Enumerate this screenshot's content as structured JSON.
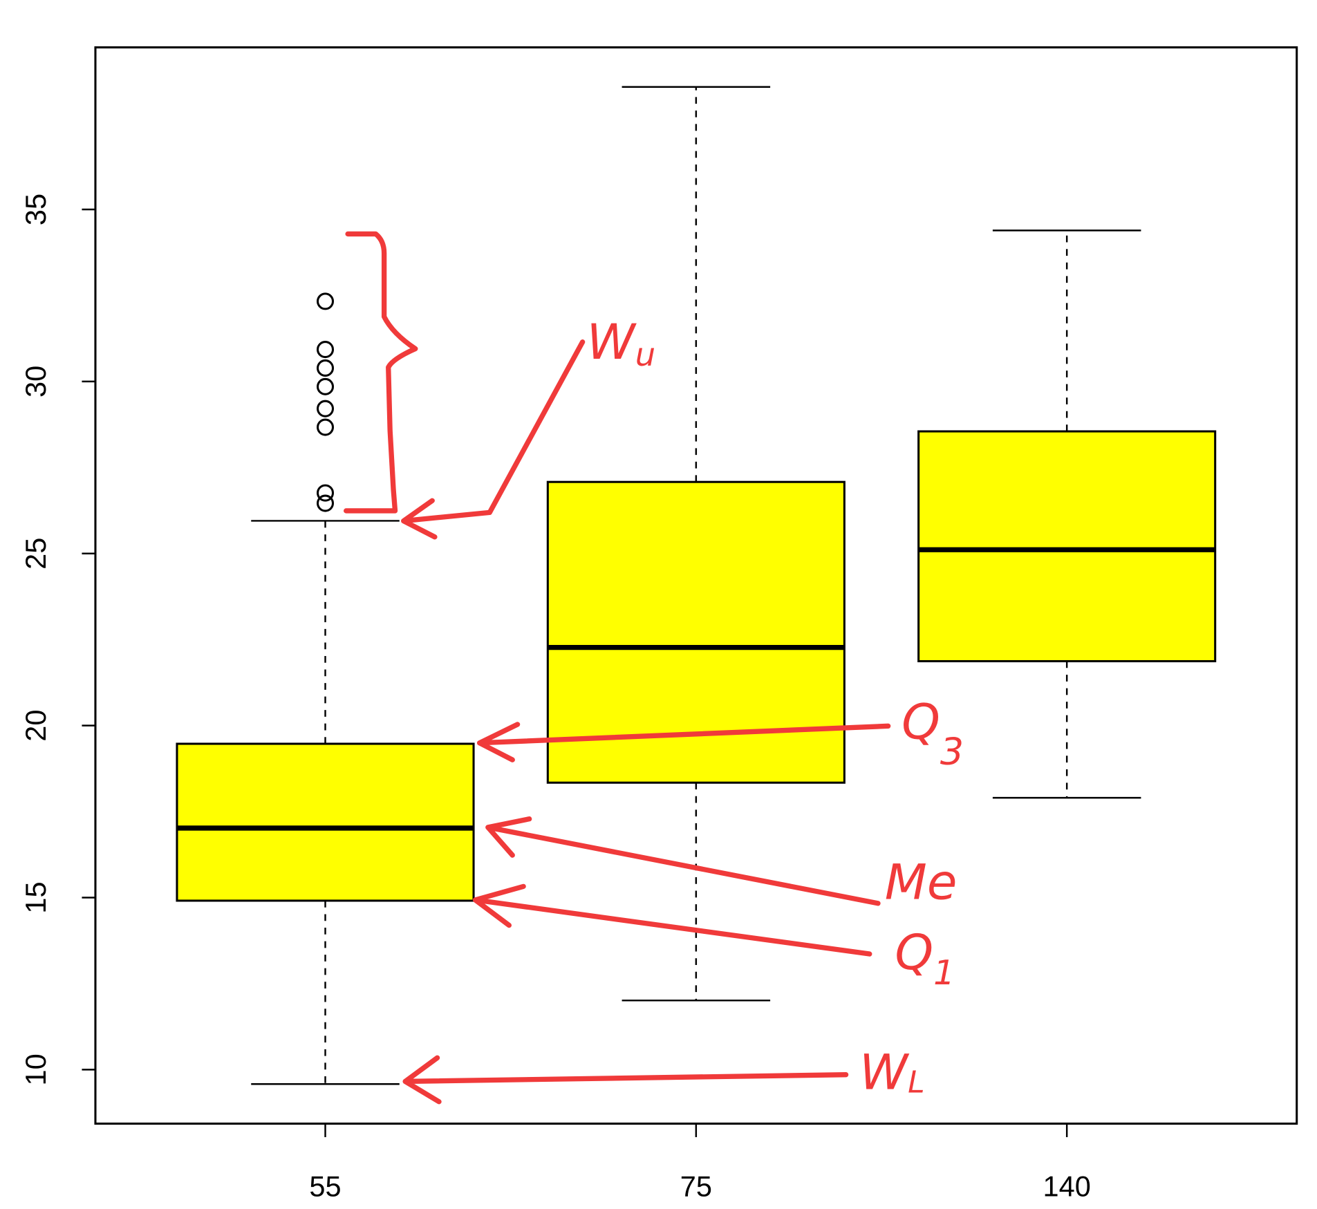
{
  "chart_data": {
    "type": "boxplot",
    "categories": [
      "55",
      "75",
      "140"
    ],
    "whisker_low": [
      9.58,
      12.01,
      17.9
    ],
    "q1": [
      14.91,
      18.34,
      21.87
    ],
    "median": [
      17.02,
      22.27,
      25.11
    ],
    "q3": [
      19.47,
      27.08,
      28.55
    ],
    "whisker_high": [
      25.95,
      38.56,
      34.39
    ],
    "outliers": [
      [
        32.33,
        30.93,
        30.39,
        29.85,
        29.21,
        28.67,
        26.76,
        26.46
      ],
      [],
      []
    ],
    "color": "#ffff00",
    "ylim": [
      8.43,
      39.71
    ],
    "yticks": [
      10,
      15,
      20,
      25,
      30,
      35
    ],
    "annotations": [
      {
        "label": "W",
        "subscript": "u"
      },
      {
        "label": "Q",
        "subscript": "3"
      },
      {
        "label": "Me"
      },
      {
        "label": "Q",
        "subscript": "1"
      },
      {
        "label": "W",
        "subscript": "L"
      }
    ]
  }
}
